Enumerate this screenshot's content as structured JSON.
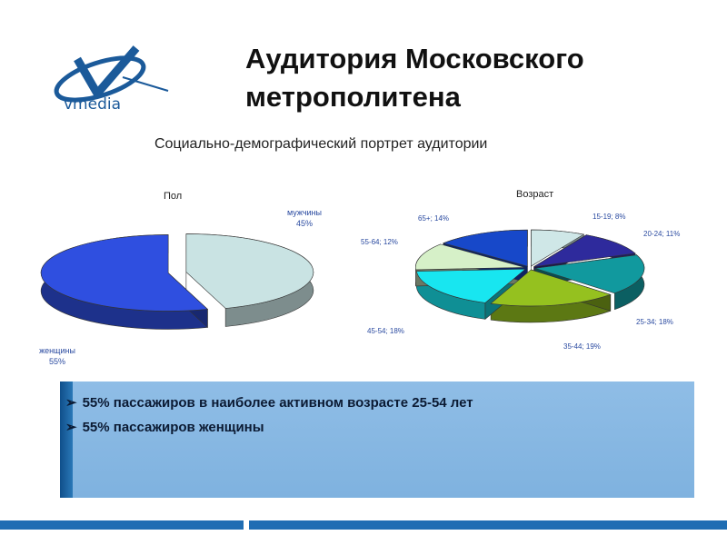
{
  "logo": {
    "brand": "vmedia"
  },
  "title": {
    "line1": "Аудитория Московского",
    "line2": "метрополитена"
  },
  "subtitle": "Социально-демографический портрет аудитории",
  "chart_data": [
    {
      "type": "pie",
      "title": "Пол",
      "categories": [
        "мужчины",
        "женщины"
      ],
      "values": [
        45,
        55
      ],
      "labels": [
        "мужчины\n45%",
        "женщины\n55%"
      ],
      "colors": [
        "#c9e3e3",
        "#2f4fe0"
      ]
    },
    {
      "type": "pie",
      "title": "Возраст",
      "categories": [
        "15-19",
        "20-24",
        "25-34",
        "35-44",
        "45-54",
        "55-64",
        "65+"
      ],
      "values": [
        8,
        11,
        18,
        19,
        18,
        12,
        14
      ],
      "labels": [
        "15-19; 8%",
        "20-24; 11%",
        "25-34; 18%",
        "35-44; 19%",
        "45-54; 18%",
        "55-64; 12%",
        "65+; 14%"
      ],
      "colors": [
        "#cfe7e7",
        "#2e2a9c",
        "#11999e",
        "#95c11f",
        "#18e6f0",
        "#d6f0c8",
        "#1748c9"
      ]
    }
  ],
  "bullets": [
    "55% пассажиров в наиболее активном возрасте 25-54 лет",
    "55% пассажиров женщины"
  ],
  "bullet_marker": "➢"
}
